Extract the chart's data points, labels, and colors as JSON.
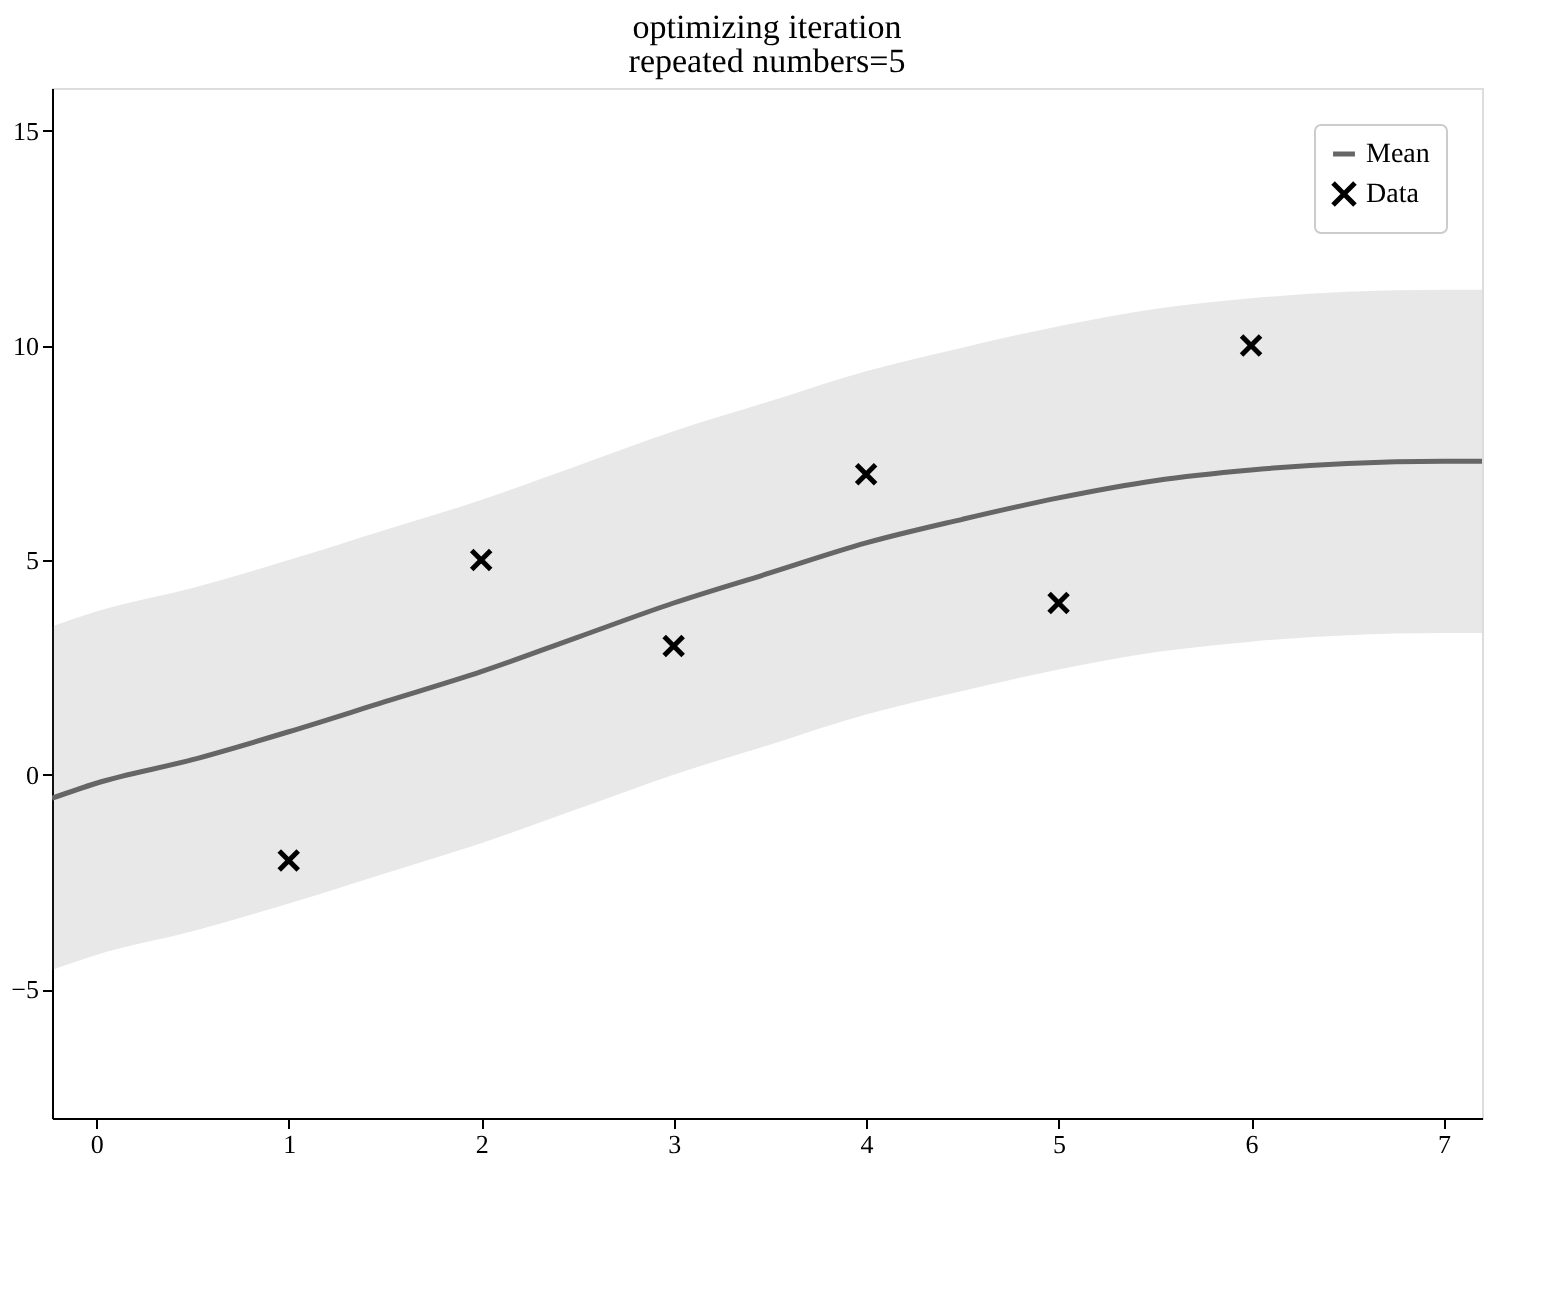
{
  "chart_data": {
    "type": "line",
    "title": "optimizing iteration",
    "subtitle": "repeated numbers=5",
    "xlim": [
      -0.23,
      7.2
    ],
    "ylim": [
      -8,
      16
    ],
    "xticks": [
      0,
      1,
      2,
      3,
      4,
      5,
      6,
      7
    ],
    "yticks": [
      -5,
      0,
      5,
      10,
      15
    ],
    "grid": false,
    "legend": "top right",
    "series": [
      {
        "name": "Mean",
        "color": "#666666",
        "line_style": "solid",
        "marker": "none",
        "x": [
          -0.23,
          0,
          0.5,
          1,
          1.5,
          2,
          2.5,
          3,
          3.5,
          4,
          4.5,
          5,
          5.5,
          6,
          6.5,
          7,
          7.2
        ],
        "values": [
          -0.55,
          -0.2,
          0.35,
          1,
          1.7,
          2.4,
          3.2,
          4,
          4.7,
          5.4,
          5.95,
          6.45,
          6.85,
          7.1,
          7.25,
          7.3,
          7.3
        ],
        "lower": [
          -4.55,
          -4.2,
          -3.65,
          -3,
          -2.3,
          -1.6,
          -0.8,
          0,
          0.7,
          1.4,
          1.95,
          2.45,
          2.85,
          3.1,
          3.25,
          3.3,
          3.3
        ],
        "upper": [
          3.45,
          3.8,
          4.35,
          5,
          5.7,
          6.4,
          7.2,
          8,
          8.7,
          9.4,
          9.95,
          10.45,
          10.85,
          11.1,
          11.25,
          11.3,
          11.3
        ]
      },
      {
        "name": "Data",
        "type": "scatter",
        "color": "#000000",
        "marker": "cross",
        "x": [
          1,
          2,
          3,
          4,
          5,
          6
        ],
        "values": [
          -2,
          5,
          3,
          7,
          4,
          10
        ]
      }
    ]
  }
}
